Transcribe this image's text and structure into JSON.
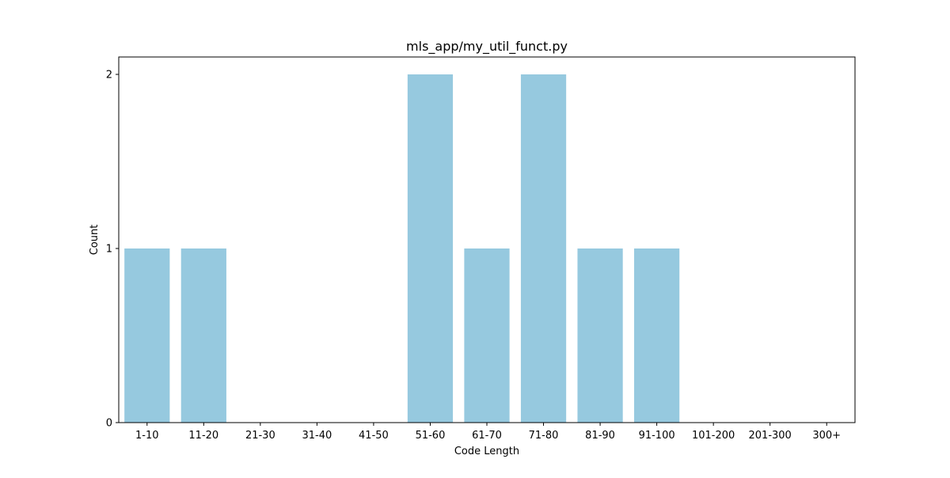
{
  "chart_data": {
    "type": "bar",
    "title": "mls_app/my_util_funct.py",
    "xlabel": "Code Length",
    "ylabel": "Count",
    "categories": [
      "1-10",
      "11-20",
      "21-30",
      "31-40",
      "41-50",
      "51-60",
      "61-70",
      "71-80",
      "81-90",
      "91-100",
      "101-200",
      "201-300",
      "300+"
    ],
    "values": [
      1,
      1,
      0,
      0,
      0,
      2,
      1,
      2,
      1,
      1,
      0,
      0,
      0
    ],
    "ylim": [
      0,
      2.1
    ],
    "yticks": [
      0,
      1,
      2
    ],
    "grid": false,
    "bar_color": "#96c9df"
  }
}
